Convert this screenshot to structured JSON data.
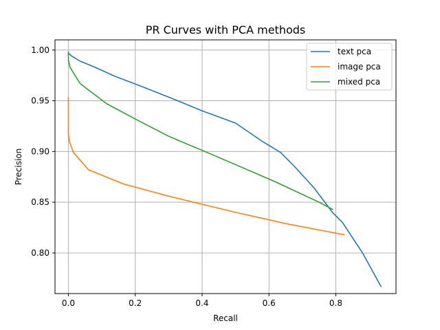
{
  "chart_data": {
    "type": "line",
    "title": "PR Curves with PCA methods",
    "xlabel": "Recall",
    "ylabel": "Precision",
    "xlim": [
      -0.04,
      0.98
    ],
    "ylim": [
      0.76,
      1.01
    ],
    "xticks": [
      0.0,
      0.2,
      0.4,
      0.6,
      0.8
    ],
    "xtick_labels": [
      "0.0",
      "0.2",
      "0.4",
      "0.6",
      "0.8"
    ],
    "yticks": [
      0.8,
      0.85,
      0.9,
      0.95,
      1.0
    ],
    "ytick_labels": [
      "0.80",
      "0.85",
      "0.90",
      "0.95",
      "1.00"
    ],
    "grid": true,
    "legend_position": "top-right",
    "series": [
      {
        "name": "text pca",
        "color": "#1f77b4",
        "x": [
          0.0,
          0.01,
          0.035,
          0.08,
          0.14,
          0.22,
          0.32,
          0.4,
          0.5,
          0.58,
          0.635,
          0.68,
          0.735,
          0.79,
          0.82,
          0.88,
          0.935
        ],
        "y": [
          0.997,
          0.994,
          0.989,
          0.983,
          0.974,
          0.964,
          0.951,
          0.94,
          0.928,
          0.91,
          0.899,
          0.884,
          0.864,
          0.84,
          0.83,
          0.8,
          0.767
        ]
      },
      {
        "name": "image pca",
        "color": "#ff7f0e",
        "x": [
          0.0,
          0.0,
          0.003,
          0.015,
          0.06,
          0.165,
          0.3,
          0.5,
          0.65,
          0.76,
          0.825
        ],
        "y": [
          0.953,
          0.917,
          0.91,
          0.899,
          0.882,
          0.868,
          0.856,
          0.84,
          0.829,
          0.822,
          0.818
        ]
      },
      {
        "name": "mixed pca",
        "color": "#2ca02c",
        "x": [
          0.0,
          0.0,
          0.005,
          0.035,
          0.115,
          0.2,
          0.3,
          0.43,
          0.62,
          0.75,
          0.79
        ],
        "y": [
          0.998,
          0.99,
          0.983,
          0.967,
          0.947,
          0.932,
          0.915,
          0.897,
          0.87,
          0.85,
          0.843
        ]
      }
    ]
  }
}
